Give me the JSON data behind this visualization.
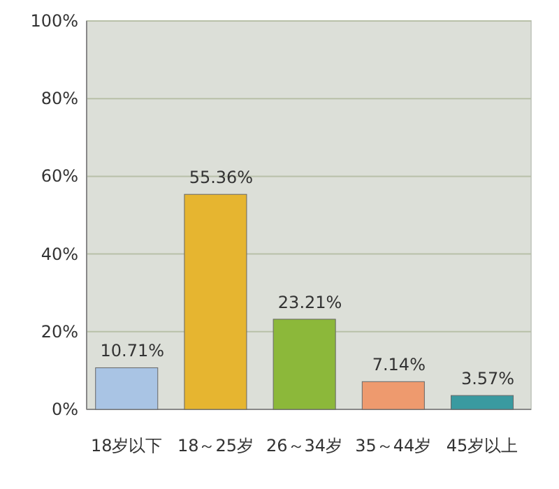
{
  "chart_data": {
    "type": "bar",
    "categories": [
      "18岁以下",
      "18～25岁",
      "26～34岁",
      "35～44岁",
      "45岁以上"
    ],
    "values": [
      10.71,
      55.36,
      23.21,
      7.14,
      3.57
    ],
    "colors": [
      "#a9c4e4",
      "#e6b530",
      "#8cb83a",
      "#ee9a6e",
      "#3a9aa0"
    ],
    "value_labels": [
      "10.71%",
      "55.36%",
      "23.21%",
      "7.14%",
      "3.57%"
    ],
    "ylim": [
      0,
      100
    ],
    "yticks": [
      {
        "value": 0,
        "label": "0%"
      },
      {
        "value": 20,
        "label": "20%"
      },
      {
        "value": 40,
        "label": "40%"
      },
      {
        "value": 60,
        "label": "60%"
      },
      {
        "value": 80,
        "label": "80%"
      },
      {
        "value": 100,
        "label": "100%"
      }
    ],
    "grid": "y"
  }
}
